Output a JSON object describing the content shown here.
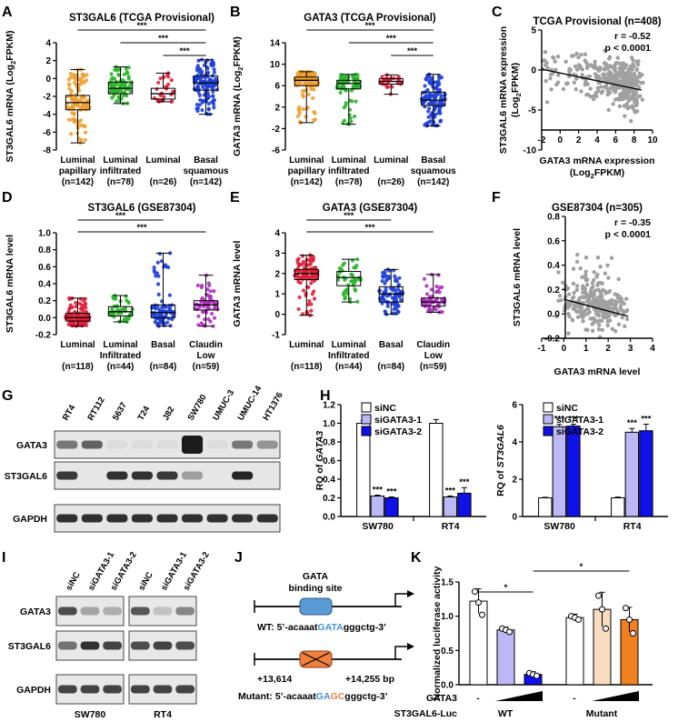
{
  "panel_labels": [
    "A",
    "B",
    "C",
    "D",
    "E",
    "F",
    "G",
    "H",
    "I",
    "J",
    "K"
  ],
  "chart_data": [
    {
      "panel": "A",
      "type": "box",
      "title": "ST3GAL6 (TCGA Provisional)",
      "ylabel": "ST3GAL6 mRNA (Log2FPKM)",
      "ylim": [
        -8,
        4
      ],
      "yticks": [
        -8,
        -6,
        -4,
        -2,
        0,
        2,
        4
      ],
      "categories": [
        [
          "Luminal",
          "papillary",
          "(n=142)"
        ],
        [
          "Luminal",
          "infiltrated",
          "(n=78)"
        ],
        [
          "Luminal",
          "",
          "(n=26)"
        ],
        [
          "Basal",
          "squamous",
          "(n=142)"
        ]
      ],
      "colors": [
        "#f0a030",
        "#2bb52b",
        "#e0203a",
        "#1f3fd6"
      ],
      "n": [
        142,
        78,
        26,
        142
      ],
      "boxes": [
        {
          "min": -7.2,
          "q1": -3.5,
          "median": -2.7,
          "q3": -1.9,
          "max": 1.0
        },
        {
          "min": -2.8,
          "q1": -1.7,
          "median": -1.1,
          "q3": -0.4,
          "max": 1.3
        },
        {
          "min": -2.6,
          "q1": -2.3,
          "median": -1.7,
          "q3": -1.1,
          "max": 0.6
        },
        {
          "min": -4.0,
          "q1": -1.3,
          "median": -0.5,
          "q3": 0.3,
          "max": 2.1
        }
      ],
      "significance": [
        {
          "from": 0,
          "to": 3,
          "label": "***"
        },
        {
          "from": 1,
          "to": 3,
          "label": "***"
        },
        {
          "from": 2,
          "to": 3,
          "label": "***"
        }
      ]
    },
    {
      "panel": "B",
      "type": "box",
      "title": "GATA3 (TCGA Provisional)",
      "ylabel": "GATA3 mRNA (Log2FPKM)",
      "ylim": [
        -6,
        14
      ],
      "yticks": [
        -6,
        -2,
        2,
        6,
        10,
        14
      ],
      "categories": [
        [
          "Luminal",
          "papillary",
          "(n=142)"
        ],
        [
          "Luminal",
          "infiltrated",
          "(n=78)"
        ],
        [
          "Luminal",
          "",
          "(n=26)"
        ],
        [
          "Basal",
          "squamous",
          "(n=142)"
        ]
      ],
      "colors": [
        "#f0a030",
        "#2bb52b",
        "#e0203a",
        "#1f3fd6"
      ],
      "n": [
        142,
        78,
        26,
        142
      ],
      "boxes": [
        {
          "min": -0.9,
          "q1": 6.0,
          "median": 7.0,
          "q3": 7.6,
          "max": 8.6
        },
        {
          "min": -1.2,
          "q1": 5.4,
          "median": 6.4,
          "q3": 7.0,
          "max": 8.1
        },
        {
          "min": 4.4,
          "q1": 6.3,
          "median": 6.8,
          "q3": 7.3,
          "max": 8.0
        },
        {
          "min": -1.5,
          "q1": 2.3,
          "median": 3.3,
          "q3": 4.8,
          "max": 8.1
        }
      ],
      "significance": [
        {
          "from": 0,
          "to": 3,
          "label": "***"
        },
        {
          "from": 1,
          "to": 3,
          "label": "***"
        },
        {
          "from": 2,
          "to": 3,
          "label": "***"
        }
      ]
    },
    {
      "panel": "C",
      "type": "scatter",
      "title": "TCGA Provisional (n=408)",
      "xlabel": "GATA3 mRNA expression (Log2FPKM)",
      "ylabel": "ST3GAL6 mRNA expression (Log2FPKM)",
      "xlim": [
        -2,
        10
      ],
      "ylim": [
        -10,
        5
      ],
      "xticks": [
        -2,
        0,
        2,
        4,
        6,
        8,
        10
      ],
      "yticks": [
        -10,
        -5,
        0,
        5
      ],
      "n": 408,
      "r": "r = -0.52",
      "p": "p < 0.0001",
      "trend": {
        "x0": -2,
        "y0": 0.1,
        "x1": 8.8,
        "y1": -2.5
      },
      "cloud": [
        {
          "cx": -1.0,
          "cy": 0.0,
          "sx": 0.7,
          "sy": 1.0,
          "n": 22
        },
        {
          "cx": 2.0,
          "cy": -0.2,
          "sx": 1.4,
          "sy": 1.3,
          "n": 50
        },
        {
          "cx": 5.5,
          "cy": -1.0,
          "sx": 1.3,
          "sy": 1.4,
          "n": 150
        },
        {
          "cx": 7.3,
          "cy": -2.2,
          "sx": 0.7,
          "sy": 1.6,
          "n": 186
        }
      ]
    },
    {
      "panel": "D",
      "type": "box",
      "title": "ST3GAL6 (GSE87304)",
      "ylabel": "ST3GAL6 mRNA level",
      "ylim": [
        -0.2,
        1.0
      ],
      "yticks": [
        -0.2,
        0.0,
        0.2,
        0.4,
        0.6,
        0.8,
        1.0
      ],
      "categories": [
        [
          "Luminal",
          "",
          "(n=118)"
        ],
        [
          "Luminal",
          "Infiltrated",
          "(n=44)"
        ],
        [
          "Basal",
          "",
          "(n=84)"
        ],
        [
          "Claudin",
          "Low",
          "(n=59)"
        ]
      ],
      "colors": [
        "#e0203a",
        "#2bb52b",
        "#1f3fd6",
        "#b030c0"
      ],
      "n": [
        118,
        44,
        84,
        59
      ],
      "boxes": [
        {
          "min": -0.1,
          "q1": -0.04,
          "median": 0.0,
          "q3": 0.05,
          "max": 0.23
        },
        {
          "min": -0.05,
          "q1": 0.02,
          "median": 0.07,
          "q3": 0.13,
          "max": 0.26
        },
        {
          "min": -0.1,
          "q1": 0.0,
          "median": 0.06,
          "q3": 0.15,
          "max": 0.76
        },
        {
          "min": -0.1,
          "q1": 0.09,
          "median": 0.15,
          "q3": 0.2,
          "max": 0.5
        }
      ],
      "significance": [
        {
          "from": 0,
          "to": 2,
          "label": "***"
        },
        {
          "from": 0,
          "to": 3,
          "label": "***"
        }
      ]
    },
    {
      "panel": "E",
      "type": "box",
      "title": "GATA3 (GSE87304)",
      "ylabel": "GATA3 mRNA level",
      "ylim": [
        -1,
        4
      ],
      "yticks": [
        -1,
        0,
        1,
        2,
        3,
        4
      ],
      "categories": [
        [
          "Luminal",
          "",
          "(n=118)"
        ],
        [
          "Luminal",
          "Infiltrated",
          "(n=44)"
        ],
        [
          "Basal",
          "",
          "(n=84)"
        ],
        [
          "Claudin",
          "Low",
          "(n=59)"
        ]
      ],
      "colors": [
        "#e0203a",
        "#2bb52b",
        "#1f3fd6",
        "#b030c0"
      ],
      "n": [
        118,
        44,
        84,
        59
      ],
      "boxes": [
        {
          "min": -0.05,
          "q1": 1.7,
          "median": 2.0,
          "q3": 2.2,
          "max": 2.9
        },
        {
          "min": 0.6,
          "q1": 1.4,
          "median": 1.8,
          "q3": 2.1,
          "max": 2.7
        },
        {
          "min": 0.0,
          "q1": 0.6,
          "median": 1.0,
          "q3": 1.35,
          "max": 2.2
        },
        {
          "min": 0.1,
          "q1": 0.4,
          "median": 0.6,
          "q3": 0.8,
          "max": 1.95
        }
      ],
      "significance": [
        {
          "from": 0,
          "to": 2,
          "label": "***"
        },
        {
          "from": 0,
          "to": 3,
          "label": "***"
        }
      ]
    },
    {
      "panel": "F",
      "type": "scatter",
      "title": "GSE87304 (n=305)",
      "xlabel": "GATA3 mRNA level",
      "ylabel": "ST3GAL6 mRNA level",
      "xlim": [
        -1,
        4
      ],
      "ylim": [
        -0.2,
        0.8
      ],
      "xticks": [
        -1,
        0,
        1,
        2,
        3,
        4
      ],
      "yticks": [
        -0.2,
        0.0,
        0.2,
        0.4,
        0.6,
        0.8
      ],
      "n": 305,
      "r": "r = -0.35",
      "p": "p < 0.0001",
      "trend": {
        "x0": 0,
        "y0": 0.12,
        "x1": 2.9,
        "y1": -0.02
      },
      "cloud": [
        {
          "cx": 0.8,
          "cy": 0.08,
          "sx": 0.5,
          "sy": 0.08,
          "n": 80
        },
        {
          "cx": 1.8,
          "cy": 0.04,
          "sx": 0.5,
          "sy": 0.07,
          "n": 180
        },
        {
          "cx": 1.2,
          "cy": 0.25,
          "sx": 0.6,
          "sy": 0.12,
          "n": 45
        }
      ]
    },
    {
      "panel": "H",
      "type": "bar",
      "title": "",
      "ylabel": "RQ of GATA3",
      "ylim": [
        0,
        1.2
      ],
      "yticks": [
        0,
        0.2,
        0.4,
        0.6,
        0.8,
        1.0,
        1.2
      ],
      "groups": [
        "SW780",
        "RT4"
      ],
      "series": [
        {
          "name": "siNC",
          "color": "#ffffff",
          "values": [
            1.0,
            1.0
          ],
          "err": [
            0.03,
            0.04
          ]
        },
        {
          "name": "siGATA3-1",
          "color": "#bcb8f5",
          "values": [
            0.22,
            0.21
          ],
          "err": [
            0.01,
            0.01
          ]
        },
        {
          "name": "siGATA3-2",
          "color": "#1010e8",
          "values": [
            0.2,
            0.25
          ],
          "err": [
            0.01,
            0.06
          ]
        }
      ],
      "significance": [
        "***",
        "***",
        "***",
        "***"
      ]
    },
    {
      "panel": "H",
      "type": "bar",
      "title": "",
      "ylabel": "RQ of ST3GAL6",
      "ylim": [
        0,
        6
      ],
      "yticks": [
        0,
        2,
        4,
        6
      ],
      "groups": [
        "SW780",
        "RT4"
      ],
      "series": [
        {
          "name": "siNC",
          "color": "#ffffff",
          "values": [
            1.0,
            1.0
          ],
          "err": [
            0.03,
            0.04
          ]
        },
        {
          "name": "siGATA3-1",
          "color": "#bcb8f5",
          "values": [
            4.82,
            4.52
          ],
          "err": [
            0.12,
            0.2
          ]
        },
        {
          "name": "siGATA3-2",
          "color": "#1010e8",
          "values": [
            4.85,
            4.6
          ],
          "err": [
            0.1,
            0.35
          ]
        }
      ],
      "significance": [
        "***",
        "***",
        "***",
        "***"
      ]
    },
    {
      "panel": "K",
      "type": "bar",
      "title": "",
      "ylabel": "Normalized luciferase activity",
      "ylim": [
        0,
        1.5
      ],
      "yticks": [
        0.0,
        0.5,
        1.0,
        1.5
      ],
      "groups": [
        "WT",
        "Mutant"
      ],
      "series": [
        {
          "colors": [
            "#ffffff",
            "#bcb8f5",
            "#1010e8"
          ],
          "values": [
            1.22,
            0.8,
            0.15
          ],
          "err": [
            0.18,
            0.04,
            0.04
          ]
        },
        {
          "colors": [
            "#ffffff",
            "#f7dcc0",
            "#f08020"
          ],
          "values": [
            0.98,
            1.1,
            0.95
          ],
          "err": [
            0.05,
            0.25,
            0.18
          ]
        }
      ],
      "points": [
        [
          [
            1.36,
            1.2,
            1.02
          ],
          [
            0.82,
            0.8,
            0.77
          ],
          [
            0.17,
            0.15,
            0.13
          ]
        ],
        [
          [
            1.0,
            0.98,
            0.95
          ],
          [
            1.3,
            1.1,
            0.82
          ],
          [
            1.12,
            0.95,
            0.75
          ]
        ]
      ],
      "gata3_label": "GATA3",
      "luc_label": "ST3GAL6-Luc",
      "minus": "-",
      "significance": [
        {
          "label": "*"
        },
        {
          "label": "*"
        }
      ]
    }
  ],
  "western_G": {
    "lanes": [
      "RT4",
      "RT112",
      "5637",
      "T24",
      "J82",
      "SW780",
      "UMUC-3",
      "UMUC-14",
      "HT1376"
    ],
    "rows": [
      "GATA3",
      "ST3GAL6",
      "GAPDH"
    ],
    "intensity": [
      [
        0.55,
        0.65,
        0.05,
        0.05,
        0.05,
        1.0,
        0.05,
        0.55,
        0.4
      ],
      [
        0.85,
        0.0,
        0.9,
        0.9,
        0.85,
        0.35,
        0.0,
        0.95,
        0.0
      ],
      [
        0.9,
        0.9,
        0.9,
        0.9,
        0.9,
        0.9,
        0.9,
        0.9,
        0.9
      ]
    ]
  },
  "western_I": {
    "lanes": [
      "siNC",
      "siGATA3-1",
      "siGATA3-2",
      "siNC",
      "siGATA3-1",
      "siGATA3-2"
    ],
    "rows": [
      "GATA3",
      "ST3GAL6",
      "GAPDH"
    ],
    "cells": [
      "SW780",
      "RT4"
    ],
    "intensity": [
      [
        0.8,
        0.35,
        0.3,
        0.75,
        0.2,
        0.5
      ],
      [
        0.6,
        0.95,
        0.85,
        0.8,
        0.85,
        0.8
      ],
      [
        0.85,
        0.85,
        0.85,
        0.85,
        0.85,
        0.85
      ]
    ]
  },
  "panel_J": {
    "site_label": "GATA",
    "site_label2": "binding site",
    "wt_prefix": "WT: 5’-acaaat",
    "wt_site": "GATA",
    "wt_suffix": "gggctg-3’",
    "mut_prefix": "Mutant: 5’-acaaat",
    "mut_g": "G",
    "mut_a": "A",
    "mut_gc": "GC",
    "mut_suffix": "gggctg-3’",
    "start": "+13,614",
    "end": "+14,255 bp"
  },
  "colors": {
    "site_blue": "#4a90d9",
    "mut_orange": "#f08040"
  }
}
